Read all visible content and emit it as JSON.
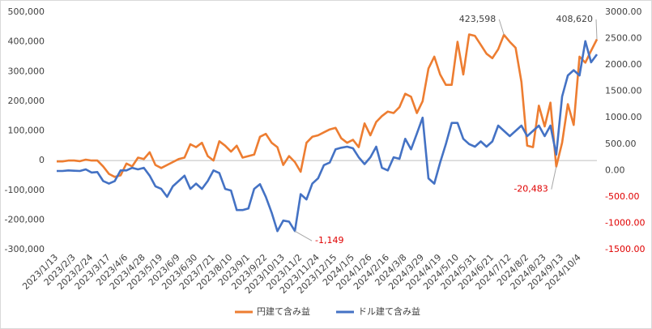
{
  "chart_data": {
    "type": "line",
    "categories": [
      "2023/1/13",
      null,
      null,
      "2023/2/3",
      null,
      null,
      "2023/2/24",
      null,
      null,
      "2023/3/17",
      null,
      null,
      "2023/4/6",
      null,
      null,
      "2023/4/28",
      null,
      null,
      "2023/5/19",
      null,
      null,
      "2023/6/9",
      null,
      null,
      "2023/6/30",
      null,
      null,
      "2023/7/21",
      null,
      null,
      "2023/8/10",
      null,
      null,
      "2023/9/1",
      null,
      null,
      "2023/9/22",
      null,
      null,
      "2023/10/13",
      null,
      null,
      "2023/11/2",
      null,
      null,
      "2023/11/24",
      null,
      null,
      "2023/12/15",
      null,
      null,
      "2024/1/5",
      null,
      null,
      "2024/1/26",
      null,
      null,
      "2024/2/16",
      null,
      null,
      "2024/3/8",
      null,
      null,
      "2024/3/29",
      null,
      null,
      "2024/4/19",
      null,
      null,
      "2024/5/10",
      null,
      null,
      "2024/5/31",
      null,
      null,
      "2024/6/21",
      null,
      null,
      "2024/7/12",
      null,
      null,
      "2024/8/2",
      null,
      null,
      "2024/8/23",
      null,
      null,
      "2024/9/13",
      null,
      null,
      "2024/10/4",
      null,
      null,
      null
    ],
    "series": [
      {
        "name": "円建て含み益",
        "color": "#ED7D31",
        "axis": "y",
        "values": [
          -3000,
          -3000,
          0,
          0,
          -2000,
          3000,
          0,
          0,
          -20000,
          -45000,
          -55000,
          -50000,
          -10000,
          -20000,
          10000,
          5000,
          28000,
          -15000,
          -25000,
          -15000,
          -5000,
          5000,
          10000,
          55000,
          45000,
          60000,
          15000,
          0,
          65000,
          50000,
          30000,
          50000,
          10000,
          15000,
          20000,
          80000,
          90000,
          60000,
          45000,
          -15000,
          15000,
          -5000,
          -38000,
          60000,
          80000,
          85000,
          95000,
          105000,
          110000,
          75000,
          60000,
          70000,
          45000,
          125000,
          85000,
          130000,
          150000,
          165000,
          160000,
          180000,
          225000,
          215000,
          160000,
          200000,
          310000,
          350000,
          290000,
          255000,
          255000,
          400000,
          290000,
          425000,
          420000,
          390000,
          360000,
          345000,
          375000,
          423598,
          400000,
          380000,
          265000,
          50000,
          45000,
          185000,
          115000,
          195000,
          -20483,
          60000,
          190000,
          120000,
          350000,
          330000,
          370000,
          408620
        ],
        "value_labels": [
          null,
          null,
          null,
          null,
          null,
          null,
          null,
          null,
          null,
          null,
          null,
          null,
          null,
          null,
          null,
          null,
          null,
          null,
          null,
          null,
          null,
          null,
          null,
          null,
          null,
          null,
          null,
          null,
          null,
          null,
          null,
          null,
          null,
          null,
          null,
          null,
          null,
          null,
          null,
          null,
          null,
          null,
          null,
          null,
          null,
          null,
          null,
          null,
          null,
          null,
          null,
          null,
          null,
          null,
          null,
          null,
          null,
          null,
          null,
          null,
          null,
          null,
          null,
          null,
          null,
          null,
          null,
          null,
          null,
          null,
          null,
          null,
          null,
          null,
          null,
          null,
          null,
          "423,598",
          null,
          null,
          null,
          null,
          null,
          null,
          null,
          null,
          "-20,483",
          null,
          null,
          null,
          null,
          null,
          null,
          "408,620"
        ]
      },
      {
        "name": "ドル建て含み益",
        "color": "#4472C4",
        "axis": "y2",
        "values": [
          -10,
          -10,
          0,
          -5,
          -10,
          20,
          -40,
          -30,
          -200,
          -250,
          -200,
          0,
          0,
          50,
          20,
          50,
          -100,
          -300,
          -350,
          -500,
          -300,
          -200,
          -100,
          -350,
          -250,
          -350,
          -200,
          0,
          -50,
          -350,
          -380,
          -750,
          -750,
          -720,
          -350,
          -260,
          -500,
          -800,
          -1150,
          -950,
          -970,
          -1149,
          -450,
          -550,
          -250,
          -150,
          100,
          150,
          400,
          430,
          450,
          420,
          250,
          120,
          250,
          450,
          50,
          0,
          250,
          220,
          600,
          400,
          700,
          1000,
          -150,
          -250,
          150,
          500,
          900,
          900,
          600,
          500,
          450,
          550,
          450,
          550,
          850,
          750,
          650,
          750,
          850,
          650,
          750,
          850,
          650,
          850,
          300,
          1400,
          1800,
          1900,
          1800,
          2450,
          2050,
          2200
        ],
        "value_labels": [
          null,
          null,
          null,
          null,
          null,
          null,
          null,
          null,
          null,
          null,
          null,
          null,
          null,
          null,
          null,
          null,
          null,
          null,
          null,
          null,
          null,
          null,
          null,
          null,
          null,
          null,
          null,
          null,
          null,
          null,
          null,
          null,
          null,
          null,
          null,
          null,
          null,
          null,
          null,
          null,
          null,
          "-1,149",
          null,
          null,
          null,
          null,
          null,
          null,
          null,
          null,
          null,
          null,
          null,
          null,
          null,
          null,
          null,
          null,
          null,
          null,
          null,
          null,
          null,
          null,
          null,
          null,
          null,
          null,
          null,
          null,
          null,
          null,
          null,
          null,
          null,
          null,
          null,
          null,
          null,
          null,
          null,
          null,
          null,
          null,
          null,
          null,
          null,
          null,
          null,
          null,
          null,
          null,
          null,
          null
        ]
      }
    ],
    "ylim": [
      -300000,
      500000
    ],
    "yticks": [
      {
        "value": -300000,
        "label": "-300,000"
      },
      {
        "value": -200000,
        "label": "-200,000"
      },
      {
        "value": -100000,
        "label": "-100,000"
      },
      0,
      {
        "value": 100000,
        "label": "100,000"
      },
      {
        "value": 200000,
        "label": "200,000"
      },
      {
        "value": 300000,
        "label": "300,000"
      },
      {
        "value": 400000,
        "label": "400,000"
      },
      {
        "value": 500000,
        "label": "500,000"
      }
    ],
    "y2lim": [
      -1500,
      3000
    ],
    "y2ticks": [
      {
        "value": -1500,
        "label": "-1500.00"
      },
      {
        "value": -1000,
        "label": "-1000.00"
      },
      {
        "value": -500,
        "label": "-500.00"
      },
      {
        "value": 0,
        "label": "0.00"
      },
      {
        "value": 500,
        "label": "500.00"
      },
      {
        "value": 1000,
        "label": "1000.00"
      },
      {
        "value": 1500,
        "label": "1500.00"
      },
      {
        "value": 2000,
        "label": "2000.00"
      },
      {
        "value": 2500,
        "label": "2500.00"
      },
      {
        "value": 3000,
        "label": "3000.00"
      }
    ],
    "legend": "bottom"
  }
}
